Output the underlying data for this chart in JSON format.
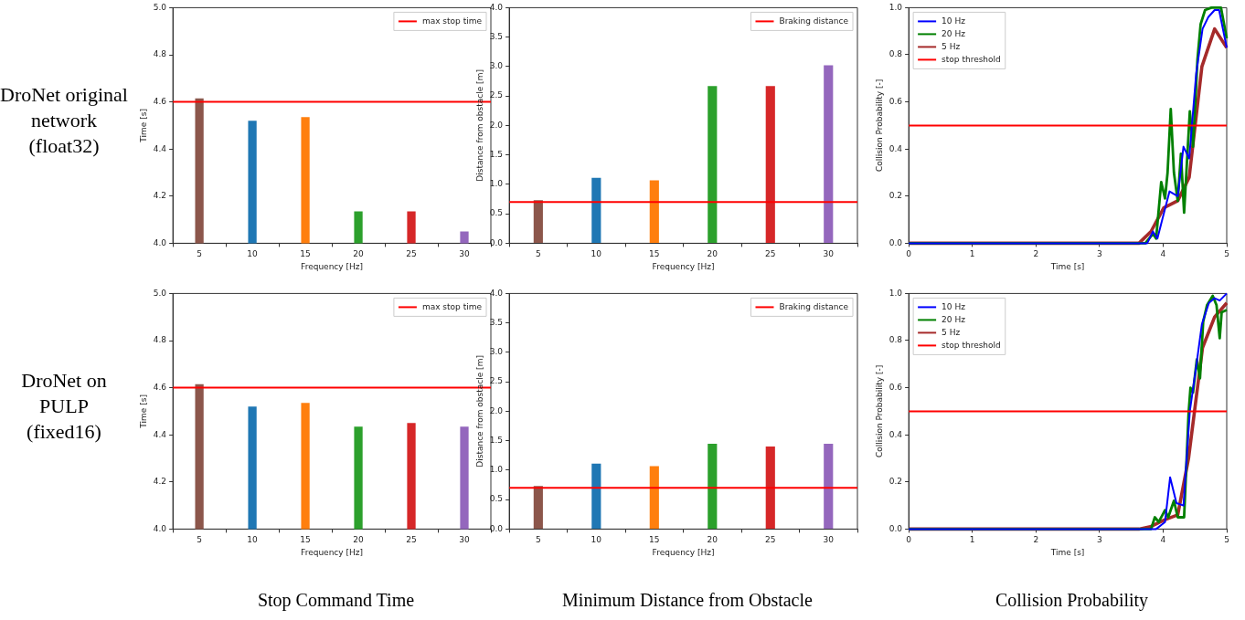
{
  "chart_data": [
    {
      "type": "bar",
      "annotations": [
        "DroNet original network (float32)"
      ],
      "categories": [
        "5",
        "10",
        "15",
        "20",
        "25",
        "30"
      ],
      "values": [
        4.615,
        4.52,
        4.535,
        4.135,
        4.135,
        4.05
      ],
      "colors": [
        "#8c564b",
        "#1f77b4",
        "#ff7f0e",
        "#2ca02c",
        "#d62728",
        "#9467bd"
      ],
      "xlabel": "Frequency [Hz]",
      "ylabel": "Time [s]",
      "ylim": [
        4.0,
        5.0
      ],
      "yticks": [
        {
          "value": 4.0,
          "label": "4.0"
        },
        4.2,
        4.4,
        4.6,
        4.8,
        {
          "value": 5.0,
          "label": "5.0"
        }
      ],
      "ref_lines": [
        {
          "axis": "y",
          "value": 4.6,
          "label": "max stop time",
          "color": "#ff0000"
        }
      ],
      "legend": "top right"
    },
    {
      "type": "bar",
      "categories": [
        "5",
        "10",
        "15",
        "20",
        "25",
        "30"
      ],
      "values": [
        0.73,
        1.11,
        1.07,
        2.67,
        2.67,
        3.02
      ],
      "colors": [
        "#8c564b",
        "#1f77b4",
        "#ff7f0e",
        "#2ca02c",
        "#d62728",
        "#9467bd"
      ],
      "xlabel": "Frequency [Hz]",
      "ylabel": "Distance from obstacle [m]",
      "ylim": [
        0,
        4.0
      ],
      "yticks": [
        {
          "value": 0,
          "label": "0.0"
        },
        0.5,
        {
          "value": 1,
          "label": "1.0"
        },
        1.5,
        {
          "value": 2,
          "label": "2.0"
        },
        2.5,
        {
          "value": 3,
          "label": "3.0"
        },
        3.5,
        {
          "value": 4,
          "label": "4.0"
        }
      ],
      "ref_lines": [
        {
          "axis": "y",
          "value": 0.7,
          "label": "Braking distance",
          "color": "#ff0000"
        }
      ],
      "legend": "top right"
    },
    {
      "type": "line",
      "xlabel": "Time [s]",
      "ylabel": "Collision Probability [-]",
      "xlim": [
        0,
        5
      ],
      "xticks": [
        0,
        1,
        2,
        3,
        4,
        5
      ],
      "ylim": [
        0,
        1.0
      ],
      "yticks": [
        {
          "value": 0,
          "label": "0.0"
        },
        0.2,
        0.4,
        0.6,
        0.8,
        {
          "value": 1,
          "label": "1.0"
        }
      ],
      "marker": "none",
      "legend": "top left",
      "series": [
        {
          "name": "10 Hz",
          "color": "#0000ff",
          "x": [
            0,
            3.75,
            3.84,
            3.91,
            4.1,
            4.23,
            4.32,
            4.41,
            4.52,
            4.62,
            4.71,
            4.81,
            4.88,
            5.0
          ],
          "values": [
            0,
            0,
            0.05,
            0.02,
            0.22,
            0.2,
            0.41,
            0.36,
            0.72,
            0.91,
            0.96,
            0.99,
            0.99,
            0.83
          ]
        },
        {
          "name": "20 Hz",
          "color": "#008000",
          "x": [
            0,
            3.72,
            3.84,
            3.89,
            3.97,
            4.03,
            4.07,
            4.12,
            4.17,
            4.23,
            4.28,
            4.33,
            4.42,
            4.47,
            4.54,
            4.59,
            4.66,
            4.76,
            4.91,
            5.0
          ],
          "values": [
            0,
            0,
            0.04,
            0.02,
            0.26,
            0.19,
            0.3,
            0.57,
            0.3,
            0.18,
            0.38,
            0.13,
            0.56,
            0.41,
            0.78,
            0.93,
            0.99,
            1.0,
            1.0,
            0.87
          ]
        },
        {
          "name": "5 Hz",
          "color": "#a52a2a",
          "x": [
            0,
            3.62,
            3.81,
            4.01,
            4.23,
            4.41,
            4.61,
            4.81,
            5.0
          ],
          "values": [
            0,
            0,
            0.05,
            0.15,
            0.18,
            0.28,
            0.75,
            0.91,
            0.83
          ]
        }
      ],
      "ref_lines": [
        {
          "axis": "y",
          "value": 0.5,
          "label": "stop threshold",
          "color": "#ff0000"
        }
      ]
    },
    {
      "type": "bar",
      "annotations": [
        "DroNet on PULP (fixed16)",
        "Stop Command Time"
      ],
      "categories": [
        "5",
        "10",
        "15",
        "20",
        "25",
        "30"
      ],
      "values": [
        4.615,
        4.52,
        4.535,
        4.435,
        4.45,
        4.435
      ],
      "colors": [
        "#8c564b",
        "#1f77b4",
        "#ff7f0e",
        "#2ca02c",
        "#d62728",
        "#9467bd"
      ],
      "xlabel": "Frequency [Hz]",
      "ylabel": "Time [s]",
      "ylim": [
        4.0,
        5.0
      ],
      "yticks": [
        {
          "value": 4.0,
          "label": "4.0"
        },
        4.2,
        4.4,
        4.6,
        4.8,
        {
          "value": 5.0,
          "label": "5.0"
        }
      ],
      "ref_lines": [
        {
          "axis": "y",
          "value": 4.6,
          "label": "max stop time",
          "color": "#ff0000"
        }
      ],
      "legend": "top right"
    },
    {
      "type": "bar",
      "annotations": [
        "Minimum Distance from Obstacle"
      ],
      "categories": [
        "5",
        "10",
        "15",
        "20",
        "25",
        "30"
      ],
      "values": [
        0.73,
        1.11,
        1.07,
        1.45,
        1.4,
        1.45
      ],
      "colors": [
        "#8c564b",
        "#1f77b4",
        "#ff7f0e",
        "#2ca02c",
        "#d62728",
        "#9467bd"
      ],
      "xlabel": "Frequency [Hz]",
      "ylabel": "Distance from obstacle [m]",
      "ylim": [
        0,
        4.0
      ],
      "yticks": [
        {
          "value": 0,
          "label": "0.0"
        },
        0.5,
        {
          "value": 1,
          "label": "1.0"
        },
        1.5,
        {
          "value": 2,
          "label": "2.0"
        },
        2.5,
        {
          "value": 3,
          "label": "3.0"
        },
        3.5,
        {
          "value": 4,
          "label": "4.0"
        }
      ],
      "ref_lines": [
        {
          "axis": "y",
          "value": 0.7,
          "label": "Braking distance",
          "color": "#ff0000"
        }
      ],
      "legend": "top right"
    },
    {
      "type": "line",
      "annotations": [
        "Collision Probability"
      ],
      "xlabel": "Time [s]",
      "ylabel": "Collision Probability [-]",
      "xlim": [
        0,
        5
      ],
      "xticks": [
        0,
        1,
        2,
        3,
        4,
        5
      ],
      "ylim": [
        0,
        1.0
      ],
      "yticks": [
        {
          "value": 0,
          "label": "0.0"
        },
        0.2,
        0.4,
        0.6,
        0.8,
        {
          "value": 1,
          "label": "1.0"
        }
      ],
      "marker": "none",
      "legend": "top left",
      "series": [
        {
          "name": "10 Hz",
          "color": "#0000ff",
          "x": [
            0,
            3.89,
            4.03,
            4.11,
            4.21,
            4.32,
            4.42,
            4.52,
            4.61,
            4.72,
            4.81,
            4.89,
            5.0
          ],
          "values": [
            0,
            0,
            0.03,
            0.22,
            0.11,
            0.1,
            0.5,
            0.69,
            0.87,
            0.96,
            0.98,
            0.97,
            1.0
          ]
        },
        {
          "name": "20 Hz",
          "color": "#008000",
          "x": [
            0,
            3.81,
            3.87,
            3.93,
            4.03,
            4.08,
            4.17,
            4.23,
            4.33,
            4.4,
            4.43,
            4.47,
            4.53,
            4.58,
            4.63,
            4.69,
            4.78,
            4.84,
            4.89,
            4.92,
            5.0
          ],
          "values": [
            0,
            0,
            0.05,
            0.03,
            0.08,
            0.05,
            0.12,
            0.05,
            0.05,
            0.49,
            0.6,
            0.58,
            0.72,
            0.64,
            0.88,
            0.95,
            0.99,
            0.95,
            0.81,
            0.92,
            0.93
          ]
        },
        {
          "name": "5 Hz",
          "color": "#a52a2a",
          "x": [
            0,
            3.62,
            3.8,
            4.03,
            4.23,
            4.4,
            4.62,
            4.81,
            5.0
          ],
          "values": [
            0,
            0,
            0.01,
            0.04,
            0.06,
            0.3,
            0.77,
            0.9,
            0.96
          ]
        }
      ],
      "ref_lines": [
        {
          "axis": "y",
          "value": 0.5,
          "label": "stop threshold",
          "color": "#ff0000"
        }
      ]
    }
  ]
}
